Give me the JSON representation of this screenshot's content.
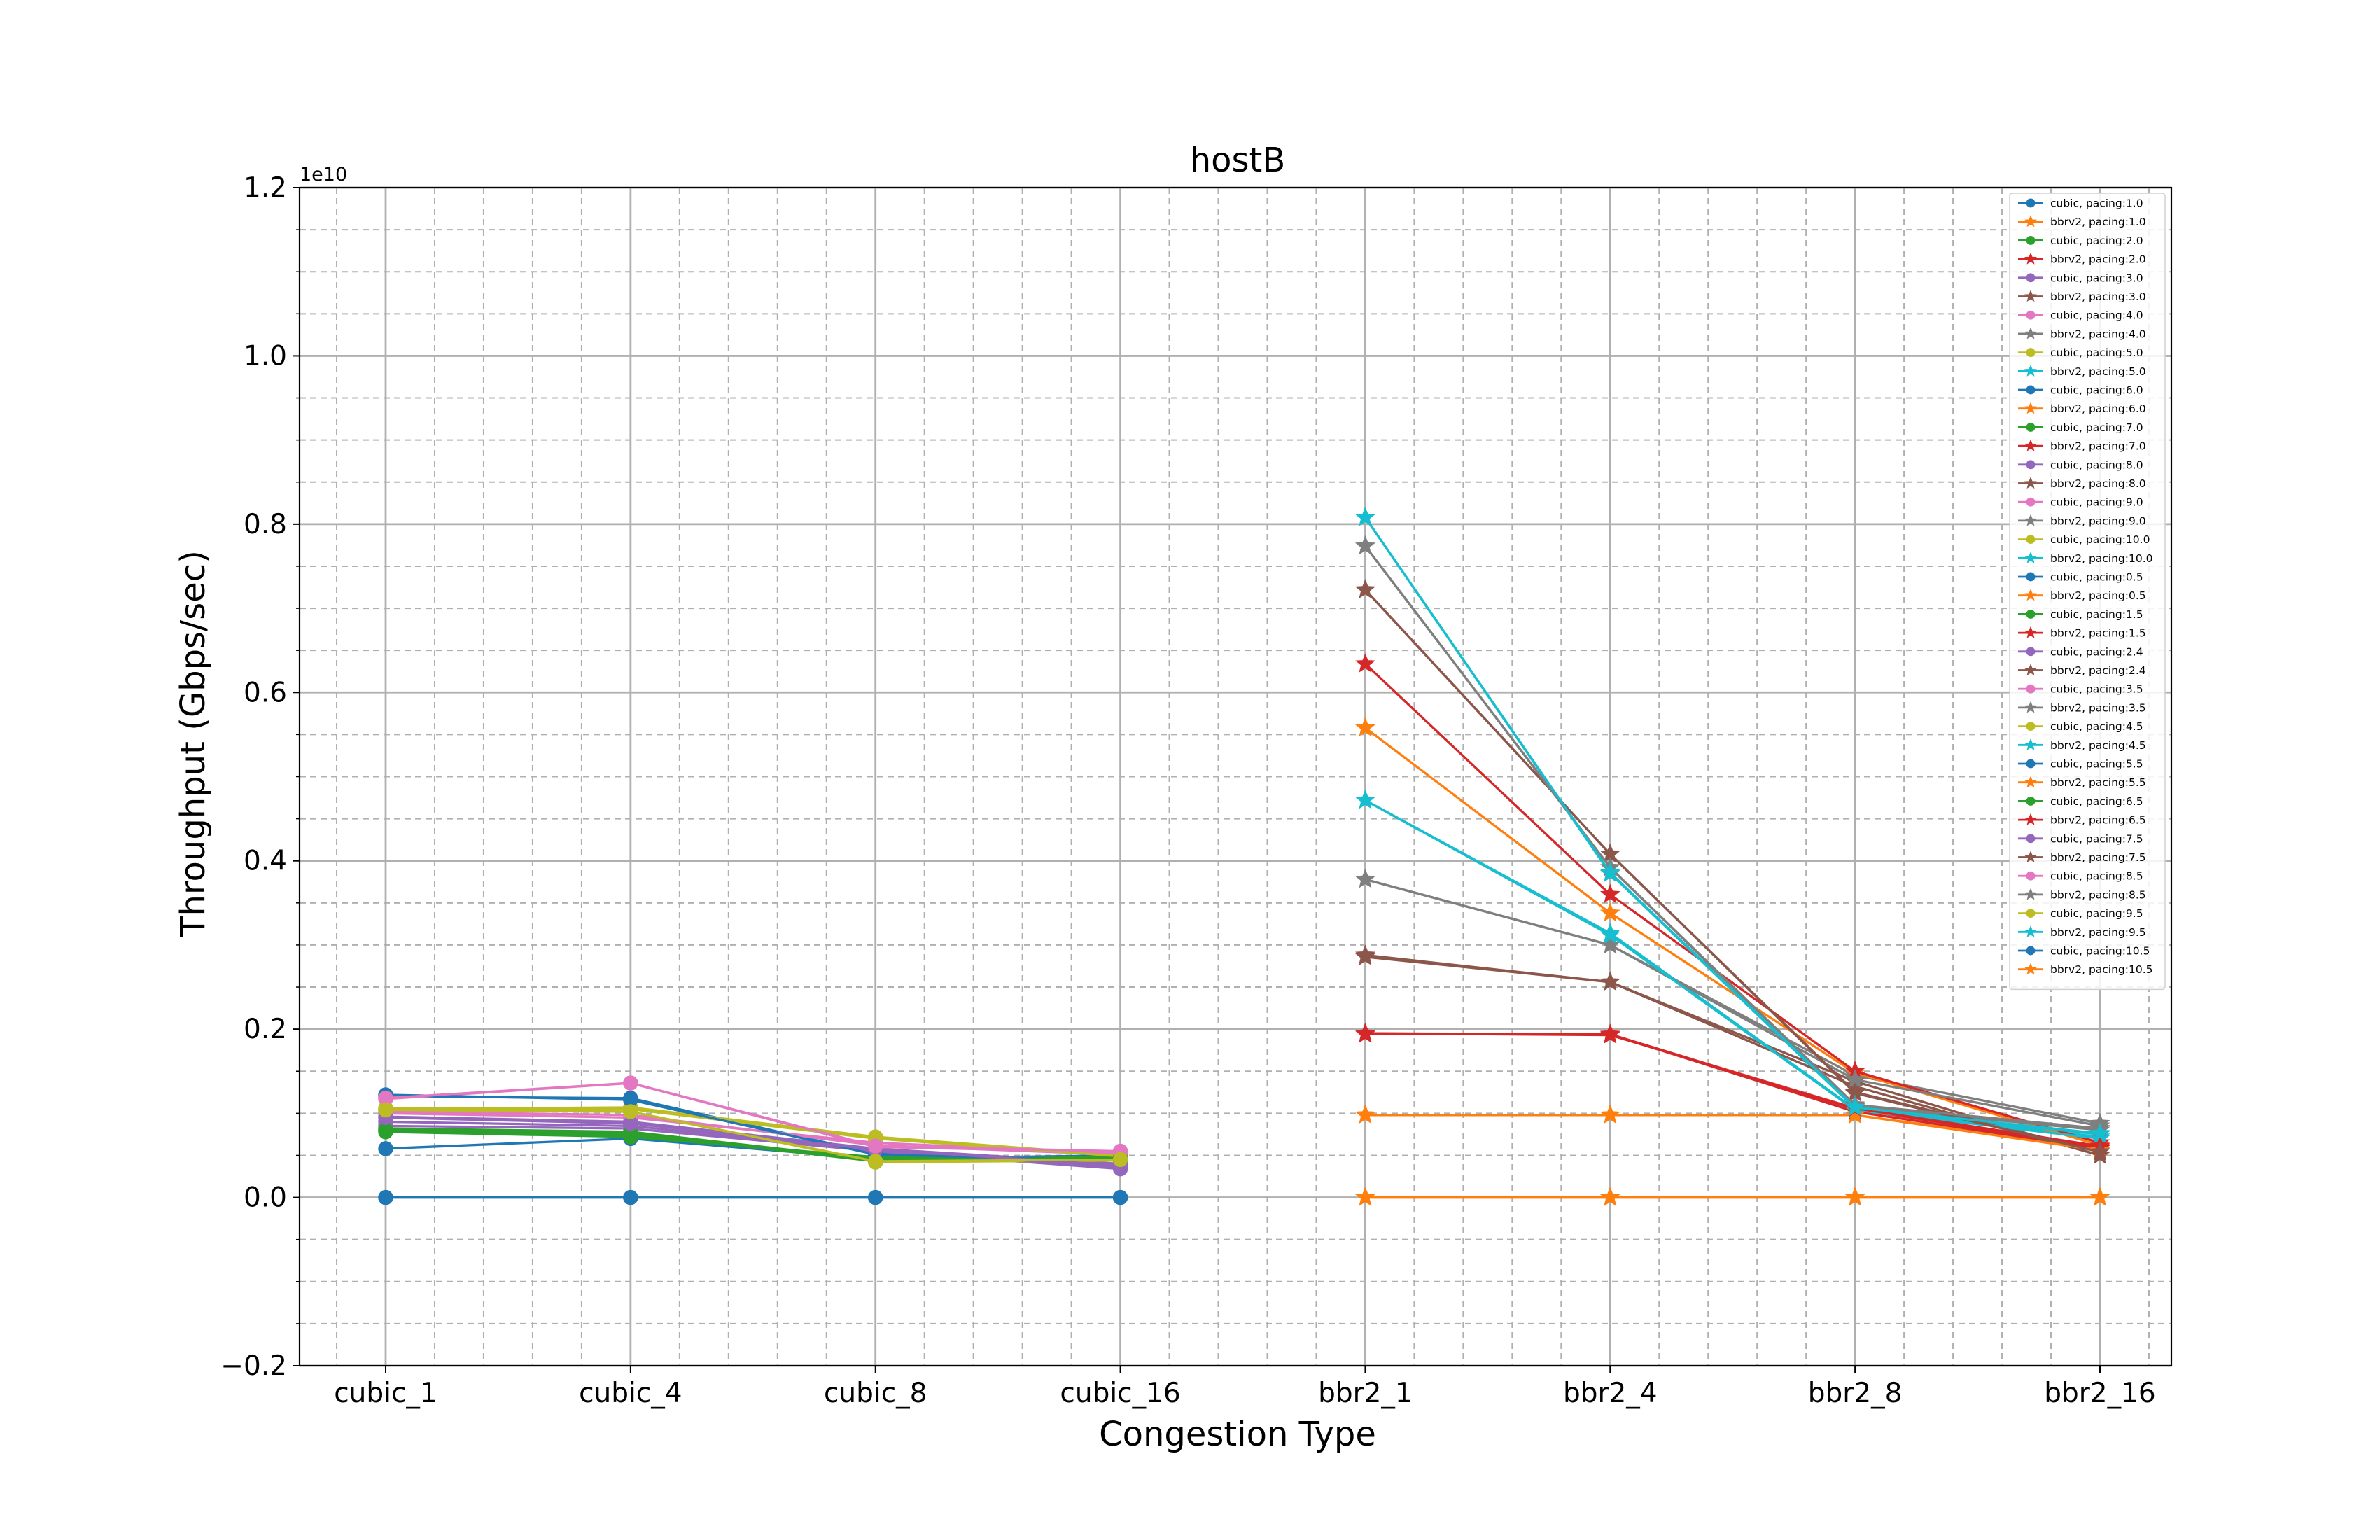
{
  "chart_data": {
    "type": "line",
    "title": "hostB",
    "xlabel": "Congestion Type",
    "ylabel": "Throughput (Gbps/sec)",
    "y_offset_text": "1e10",
    "categories": [
      "cubic_1",
      "cubic_4",
      "cubic_8",
      "cubic_16",
      "bbr2_1",
      "bbr2_4",
      "bbr2_8",
      "bbr2_16"
    ],
    "ylim": [
      -2000000000.0,
      12000000000.0
    ],
    "yticks": [
      -2000000000.0,
      0,
      2000000000.0,
      4000000000.0,
      6000000000.0,
      8000000000.0,
      10000000000.0,
      12000000000.0
    ],
    "ytick_labels": [
      "−0.2",
      "0.0",
      "0.2",
      "0.4",
      "0.6",
      "0.8",
      "1.0",
      "1.2"
    ],
    "grid": true,
    "legend_position": "top-right",
    "series": [
      {
        "name": "cubic, pacing:1.0",
        "marker": "circle",
        "color": "#1f77b4",
        "x": [
          0,
          1,
          2,
          3
        ],
        "values": [
          1200000000.0,
          1180000000.0,
          520000000.0,
          450000000.0
        ]
      },
      {
        "name": "bbrv2, pacing:1.0",
        "marker": "star",
        "color": "#ff7f0e",
        "x": [
          4,
          5,
          6,
          7
        ],
        "values": [
          980000000.0,
          980000000.0,
          980000000.0,
          580000000.0
        ]
      },
      {
        "name": "cubic, pacing:2.0",
        "marker": "circle",
        "color": "#2ca02c",
        "x": [
          0,
          1,
          2,
          3
        ],
        "values": [
          800000000.0,
          740000000.0,
          440000000.0,
          460000000.0
        ]
      },
      {
        "name": "bbrv2, pacing:2.0",
        "marker": "star",
        "color": "#d62728",
        "x": [
          4,
          5,
          6,
          7
        ],
        "values": [
          1950000000.0,
          1940000000.0,
          1050000000.0,
          600000000.0
        ]
      },
      {
        "name": "cubic, pacing:3.0",
        "marker": "circle",
        "color": "#9467bd",
        "x": [
          0,
          1,
          2,
          3
        ],
        "values": [
          850000000.0,
          820000000.0,
          550000000.0,
          340000000.0
        ]
      },
      {
        "name": "bbrv2, pacing:3.0",
        "marker": "star",
        "color": "#8c564b",
        "x": [
          4,
          5,
          6,
          7
        ],
        "values": [
          2880000000.0,
          2560000000.0,
          1380000000.0,
          500000000.0
        ]
      },
      {
        "name": "cubic, pacing:4.0",
        "marker": "circle",
        "color": "#e377c2",
        "x": [
          0,
          1,
          2,
          3
        ],
        "values": [
          1000000000.0,
          950000000.0,
          650000000.0,
          520000000.0
        ]
      },
      {
        "name": "bbrv2, pacing:4.0",
        "marker": "star",
        "color": "#7f7f7f",
        "x": [
          4,
          5,
          6,
          7
        ],
        "values": [
          3780000000.0,
          3000000000.0,
          1450000000.0,
          880000000.0
        ]
      },
      {
        "name": "cubic, pacing:5.0",
        "marker": "circle",
        "color": "#bcbd22",
        "x": [
          0,
          1,
          2,
          3
        ],
        "values": [
          1050000000.0,
          1070000000.0,
          720000000.0,
          500000000.0
        ]
      },
      {
        "name": "bbrv2, pacing:5.0",
        "marker": "star",
        "color": "#17becf",
        "x": [
          4,
          5,
          6,
          7
        ],
        "values": [
          4720000000.0,
          3140000000.0,
          1050000000.0,
          720000000.0
        ]
      },
      {
        "name": "cubic, pacing:6.0",
        "marker": "circle",
        "color": "#1f77b4",
        "x": [
          0,
          1,
          2,
          3
        ],
        "values": [
          580000000.0,
          700000000.0,
          460000000.0,
          500000000.0
        ]
      },
      {
        "name": "bbrv2, pacing:6.0",
        "marker": "star",
        "color": "#ff7f0e",
        "x": [
          4,
          5,
          6,
          7
        ],
        "values": [
          5580000000.0,
          3380000000.0,
          1480000000.0,
          620000000.0
        ]
      },
      {
        "name": "cubic, pacing:7.0",
        "marker": "circle",
        "color": "#2ca02c",
        "x": [
          0,
          1,
          2,
          3
        ],
        "values": [
          820000000.0,
          780000000.0,
          450000000.0,
          480000000.0
        ]
      },
      {
        "name": "bbrv2, pacing:7.0",
        "marker": "star",
        "color": "#d62728",
        "x": [
          4,
          5,
          6,
          7
        ],
        "values": [
          6340000000.0,
          3600000000.0,
          1500000000.0,
          650000000.0
        ]
      },
      {
        "name": "cubic, pacing:8.0",
        "marker": "circle",
        "color": "#9467bd",
        "x": [
          0,
          1,
          2,
          3
        ],
        "values": [
          960000000.0,
          900000000.0,
          580000000.0,
          400000000.0
        ]
      },
      {
        "name": "bbrv2, pacing:8.0",
        "marker": "star",
        "color": "#8c564b",
        "x": [
          4,
          5,
          6,
          7
        ],
        "values": [
          7220000000.0,
          4080000000.0,
          1250000000.0,
          550000000.0
        ]
      },
      {
        "name": "cubic, pacing:9.0",
        "marker": "circle",
        "color": "#e377c2",
        "x": [
          0,
          1,
          2,
          3
        ],
        "values": [
          1170000000.0,
          1360000000.0,
          600000000.0,
          540000000.0
        ]
      },
      {
        "name": "bbrv2, pacing:9.0",
        "marker": "star",
        "color": "#7f7f7f",
        "x": [
          4,
          5,
          6,
          7
        ],
        "values": [
          7740000000.0,
          3920000000.0,
          1080000000.0,
          800000000.0
        ]
      },
      {
        "name": "cubic, pacing:10.0",
        "marker": "circle",
        "color": "#bcbd22",
        "x": [
          0,
          1,
          2,
          3
        ],
        "values": [
          1040000000.0,
          1020000000.0,
          420000000.0,
          440000000.0
        ]
      },
      {
        "name": "bbrv2, pacing:10.0",
        "marker": "star",
        "color": "#17becf",
        "x": [
          4,
          5,
          6,
          7
        ],
        "values": [
          8080000000.0,
          3850000000.0,
          1060000000.0,
          750000000.0
        ]
      },
      {
        "name": "cubic, pacing:0.5",
        "marker": "circle",
        "color": "#1f77b4",
        "x": [
          0,
          1,
          2,
          3
        ],
        "values": [
          0,
          0,
          0,
          0
        ]
      },
      {
        "name": "bbrv2, pacing:0.5",
        "marker": "star",
        "color": "#ff7f0e",
        "x": [
          4,
          5,
          6,
          7
        ],
        "values": [
          0,
          0,
          0,
          0
        ]
      },
      {
        "name": "cubic, pacing:1.5",
        "marker": "circle",
        "color": "#2ca02c",
        "x": [
          0,
          1,
          2,
          3
        ],
        "values": [
          780000000.0,
          720000000.0,
          480000000.0,
          460000000.0
        ]
      },
      {
        "name": "bbrv2, pacing:1.5",
        "marker": "star",
        "color": "#d62728",
        "x": [
          4,
          5,
          6,
          7
        ],
        "values": [
          1940000000.0,
          1940000000.0,
          1020000000.0,
          580000000.0
        ]
      },
      {
        "name": "cubic, pacing:2.4",
        "marker": "circle",
        "color": "#9467bd",
        "x": [
          0,
          1,
          2,
          3
        ],
        "values": [
          900000000.0,
          850000000.0,
          560000000.0,
          360000000.0
        ]
      },
      {
        "name": "bbrv2, pacing:2.4",
        "marker": "star",
        "color": "#8c564b",
        "x": [
          4,
          5,
          6,
          7
        ],
        "values": [
          2860000000.0,
          2560000000.0,
          1320000000.0,
          500000000.0
        ]
      },
      {
        "name": "cubic, pacing:3.5",
        "marker": "circle",
        "color": "#e377c2",
        "x": [
          0,
          1,
          2,
          3
        ],
        "values": [
          1020000000.0,
          980000000.0,
          620000000.0,
          510000000.0
        ]
      },
      {
        "name": "bbrv2, pacing:3.5",
        "marker": "star",
        "color": "#7f7f7f",
        "x": [
          4,
          5,
          6,
          7
        ],
        "values": [
          3780000000.0,
          3000000000.0,
          1400000000.0,
          850000000.0
        ]
      },
      {
        "name": "cubic, pacing:4.5",
        "marker": "circle",
        "color": "#bcbd22",
        "x": [
          0,
          1,
          2,
          3
        ],
        "values": [
          1060000000.0,
          1050000000.0,
          700000000.0,
          490000000.0
        ]
      },
      {
        "name": "bbrv2, pacing:4.5",
        "marker": "star",
        "color": "#17becf",
        "x": [
          4,
          5,
          6,
          7
        ],
        "values": [
          4720000000.0,
          3120000000.0,
          1040000000.0,
          700000000.0
        ]
      },
      {
        "name": "cubic, pacing:5.5",
        "marker": "circle",
        "color": "#1f77b4",
        "x": [
          0,
          1,
          2,
          3
        ],
        "values": [
          1220000000.0,
          1160000000.0,
          510000000.0,
          440000000.0
        ]
      },
      {
        "name": "bbrv2, pacing:5.5",
        "marker": "star",
        "color": "#ff7f0e",
        "x": [
          4,
          5,
          6,
          7
        ],
        "values": [
          980000000.0,
          980000000.0,
          980000000.0,
          560000000.0
        ]
      },
      {
        "name": "cubic, pacing:6.5",
        "marker": "circle",
        "color": "#2ca02c",
        "x": [
          0,
          1,
          2,
          3
        ],
        "values": [
          800000000.0,
          760000000.0,
          430000000.0,
          470000000.0
        ]
      },
      {
        "name": "bbrv2, pacing:6.5",
        "marker": "star",
        "color": "#d62728",
        "x": [
          4,
          5,
          6,
          7
        ],
        "values": [
          1950000000.0,
          1930000000.0,
          1060000000.0,
          610000000.0
        ]
      },
      {
        "name": "cubic, pacing:7.5",
        "marker": "circle",
        "color": "#9467bd",
        "x": [
          0,
          1,
          2,
          3
        ],
        "values": [
          950000000.0,
          880000000.0,
          570000000.0,
          380000000.0
        ]
      },
      {
        "name": "bbrv2, pacing:7.5",
        "marker": "star",
        "color": "#8c564b",
        "x": [
          4,
          5,
          6,
          7
        ],
        "values": [
          7220000000.0,
          4080000000.0,
          1240000000.0,
          540000000.0
        ]
      },
      {
        "name": "cubic, pacing:8.5",
        "marker": "circle",
        "color": "#e377c2",
        "x": [
          0,
          1,
          2,
          3
        ],
        "values": [
          1180000000.0,
          1360000000.0,
          610000000.0,
          550000000.0
        ]
      },
      {
        "name": "bbrv2, pacing:8.5",
        "marker": "star",
        "color": "#7f7f7f",
        "x": [
          4,
          5,
          6,
          7
        ],
        "values": [
          7740000000.0,
          3920000000.0,
          1100000000.0,
          820000000.0
        ]
      },
      {
        "name": "cubic, pacing:9.5",
        "marker": "circle",
        "color": "#bcbd22",
        "x": [
          0,
          1,
          2,
          3
        ],
        "values": [
          1040000000.0,
          1020000000.0,
          430000000.0,
          450000000.0
        ]
      },
      {
        "name": "bbrv2, pacing:9.5",
        "marker": "star",
        "color": "#17becf",
        "x": [
          4,
          5,
          6,
          7
        ],
        "values": [
          8080000000.0,
          3860000000.0,
          1070000000.0,
          760000000.0
        ]
      },
      {
        "name": "cubic, pacing:10.5",
        "marker": "circle",
        "color": "#1f77b4",
        "x": [
          0,
          1,
          2,
          3
        ],
        "values": [
          0,
          0,
          0,
          0
        ]
      },
      {
        "name": "bbrv2, pacing:10.5",
        "marker": "star",
        "color": "#ff7f0e",
        "x": [
          4,
          5,
          6,
          7
        ],
        "values": [
          0,
          0,
          0,
          0
        ]
      }
    ]
  }
}
